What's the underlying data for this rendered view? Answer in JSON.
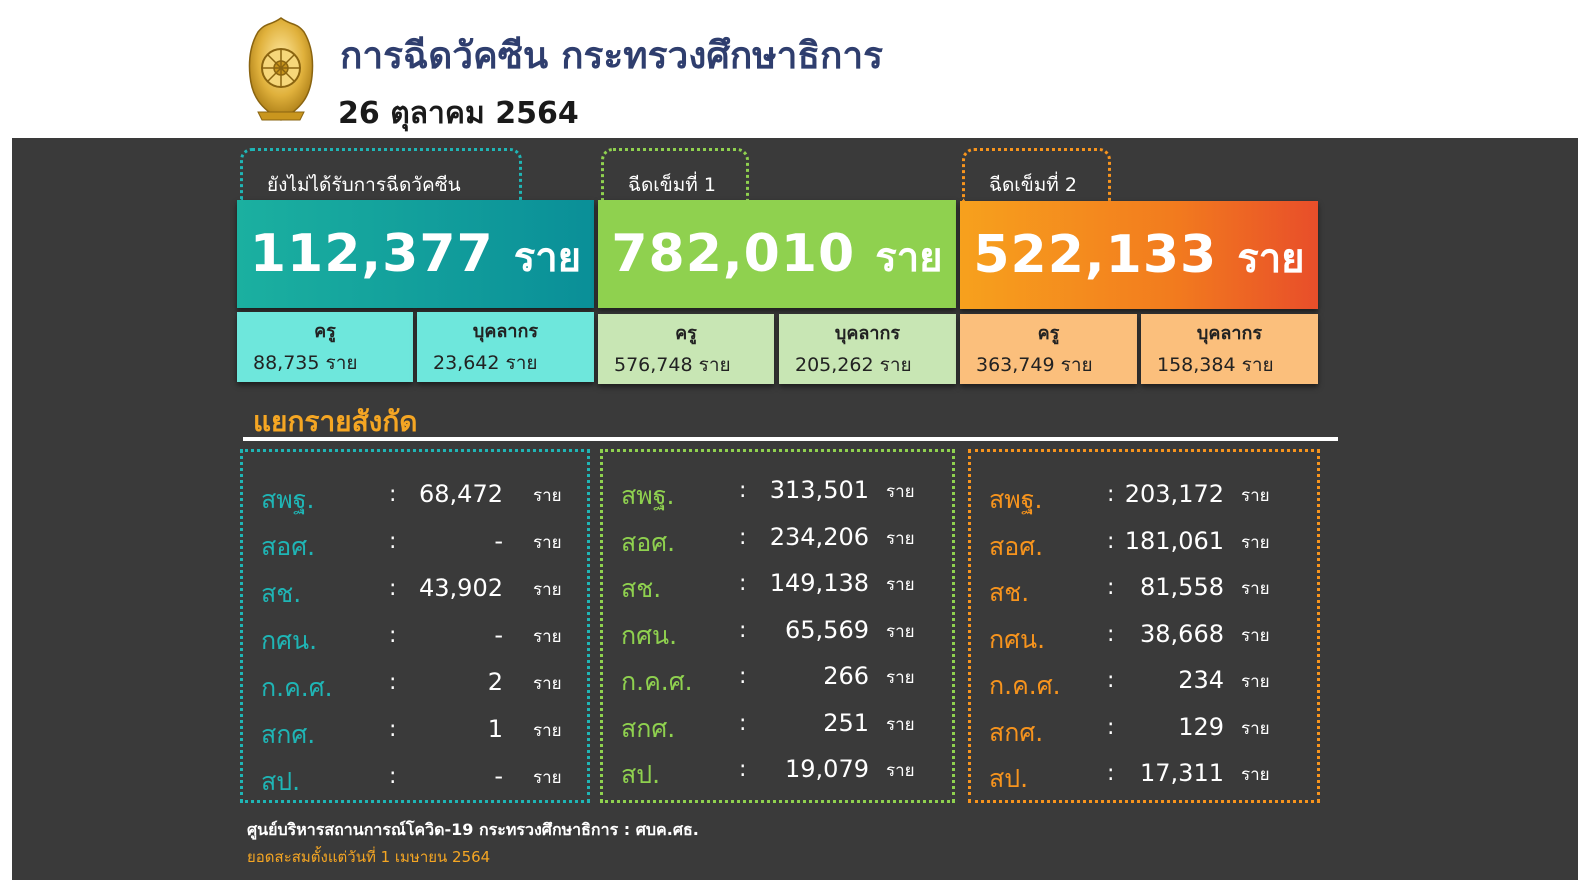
{
  "header": {
    "title": "การฉีดวัคซีน กระทรวงศึกษาธิการ",
    "date": "26 ตุลาคม 2564"
  },
  "cards": [
    {
      "tab_label": "ยังไม่ได้รับการฉีดวัคซีน",
      "total": "112,377",
      "unit": "ราย",
      "teacher_label": "ครู",
      "teacher_value": "88,735 ราย",
      "staff_label": "บุคลากร",
      "staff_value": "23,642 ราย",
      "accent": "#1aa8a8",
      "sub_color": "#6ee7dc"
    },
    {
      "tab_label": "ฉีดเข็มที่ 1",
      "total": "782,010",
      "unit": "ราย",
      "teacher_label": "ครู",
      "teacher_value": "576,748 ราย",
      "staff_label": "บุคลากร",
      "staff_value": "205,262 ราย",
      "accent": "#8fd14f",
      "sub_color": "#c8e6b4"
    },
    {
      "tab_label": "ฉีดเข็มที่ 2",
      "total": "522,133",
      "unit": "ราย",
      "teacher_label": "ครู",
      "teacher_value": "363,749 ราย",
      "staff_label": "บุคลากร",
      "staff_value": "158,384 ราย",
      "accent": "#f7941d",
      "sub_color": "#fbbf7c"
    }
  ],
  "section_title": "แยกรายสังกัด",
  "breakdown": [
    {
      "rows": [
        {
          "org": "สพฐ.",
          "value": "68,472",
          "unit": "ราย"
        },
        {
          "org": "สอศ.",
          "value": "-",
          "unit": "ราย"
        },
        {
          "org": "สช.",
          "value": "43,902",
          "unit": "ราย"
        },
        {
          "org": "กศน.",
          "value": "-",
          "unit": "ราย"
        },
        {
          "org": "ก.ค.ศ.",
          "value": "2",
          "unit": "ราย"
        },
        {
          "org": "สกศ.",
          "value": "1",
          "unit": "ราย"
        },
        {
          "org": "สป.",
          "value": "-",
          "unit": "ราย"
        }
      ]
    },
    {
      "rows": [
        {
          "org": "สพฐ.",
          "value": "313,501",
          "unit": "ราย"
        },
        {
          "org": "สอศ.",
          "value": "234,206",
          "unit": "ราย"
        },
        {
          "org": "สช.",
          "value": "149,138",
          "unit": "ราย"
        },
        {
          "org": "กศน.",
          "value": "65,569",
          "unit": "ราย"
        },
        {
          "org": "ก.ค.ศ.",
          "value": "266",
          "unit": "ราย"
        },
        {
          "org": "สกศ.",
          "value": "251",
          "unit": "ราย"
        },
        {
          "org": "สป.",
          "value": "19,079",
          "unit": "ราย"
        }
      ]
    },
    {
      "rows": [
        {
          "org": "สพฐ.",
          "value": "203,172",
          "unit": "ราย"
        },
        {
          "org": "สอศ.",
          "value": "181,061",
          "unit": "ราย"
        },
        {
          "org": "สช.",
          "value": "81,558",
          "unit": "ราย"
        },
        {
          "org": "กศน.",
          "value": "38,668",
          "unit": "ราย"
        },
        {
          "org": "ก.ค.ศ.",
          "value": "234",
          "unit": "ราย"
        },
        {
          "org": "สกศ.",
          "value": "129",
          "unit": "ราย"
        },
        {
          "org": "สป.",
          "value": "17,311",
          "unit": "ราย"
        }
      ]
    }
  ],
  "footer": {
    "source": "ศูนย์บริหารสถานการณ์โควิด-19 กระทรวงศึกษาธิการ : ศบค.ศธ.",
    "note": "ยอดสะสมตั้งแต่วันที่ 1 เมษายน 2564"
  },
  "icons": {
    "emblem": "ministry-of-education-emblem"
  }
}
